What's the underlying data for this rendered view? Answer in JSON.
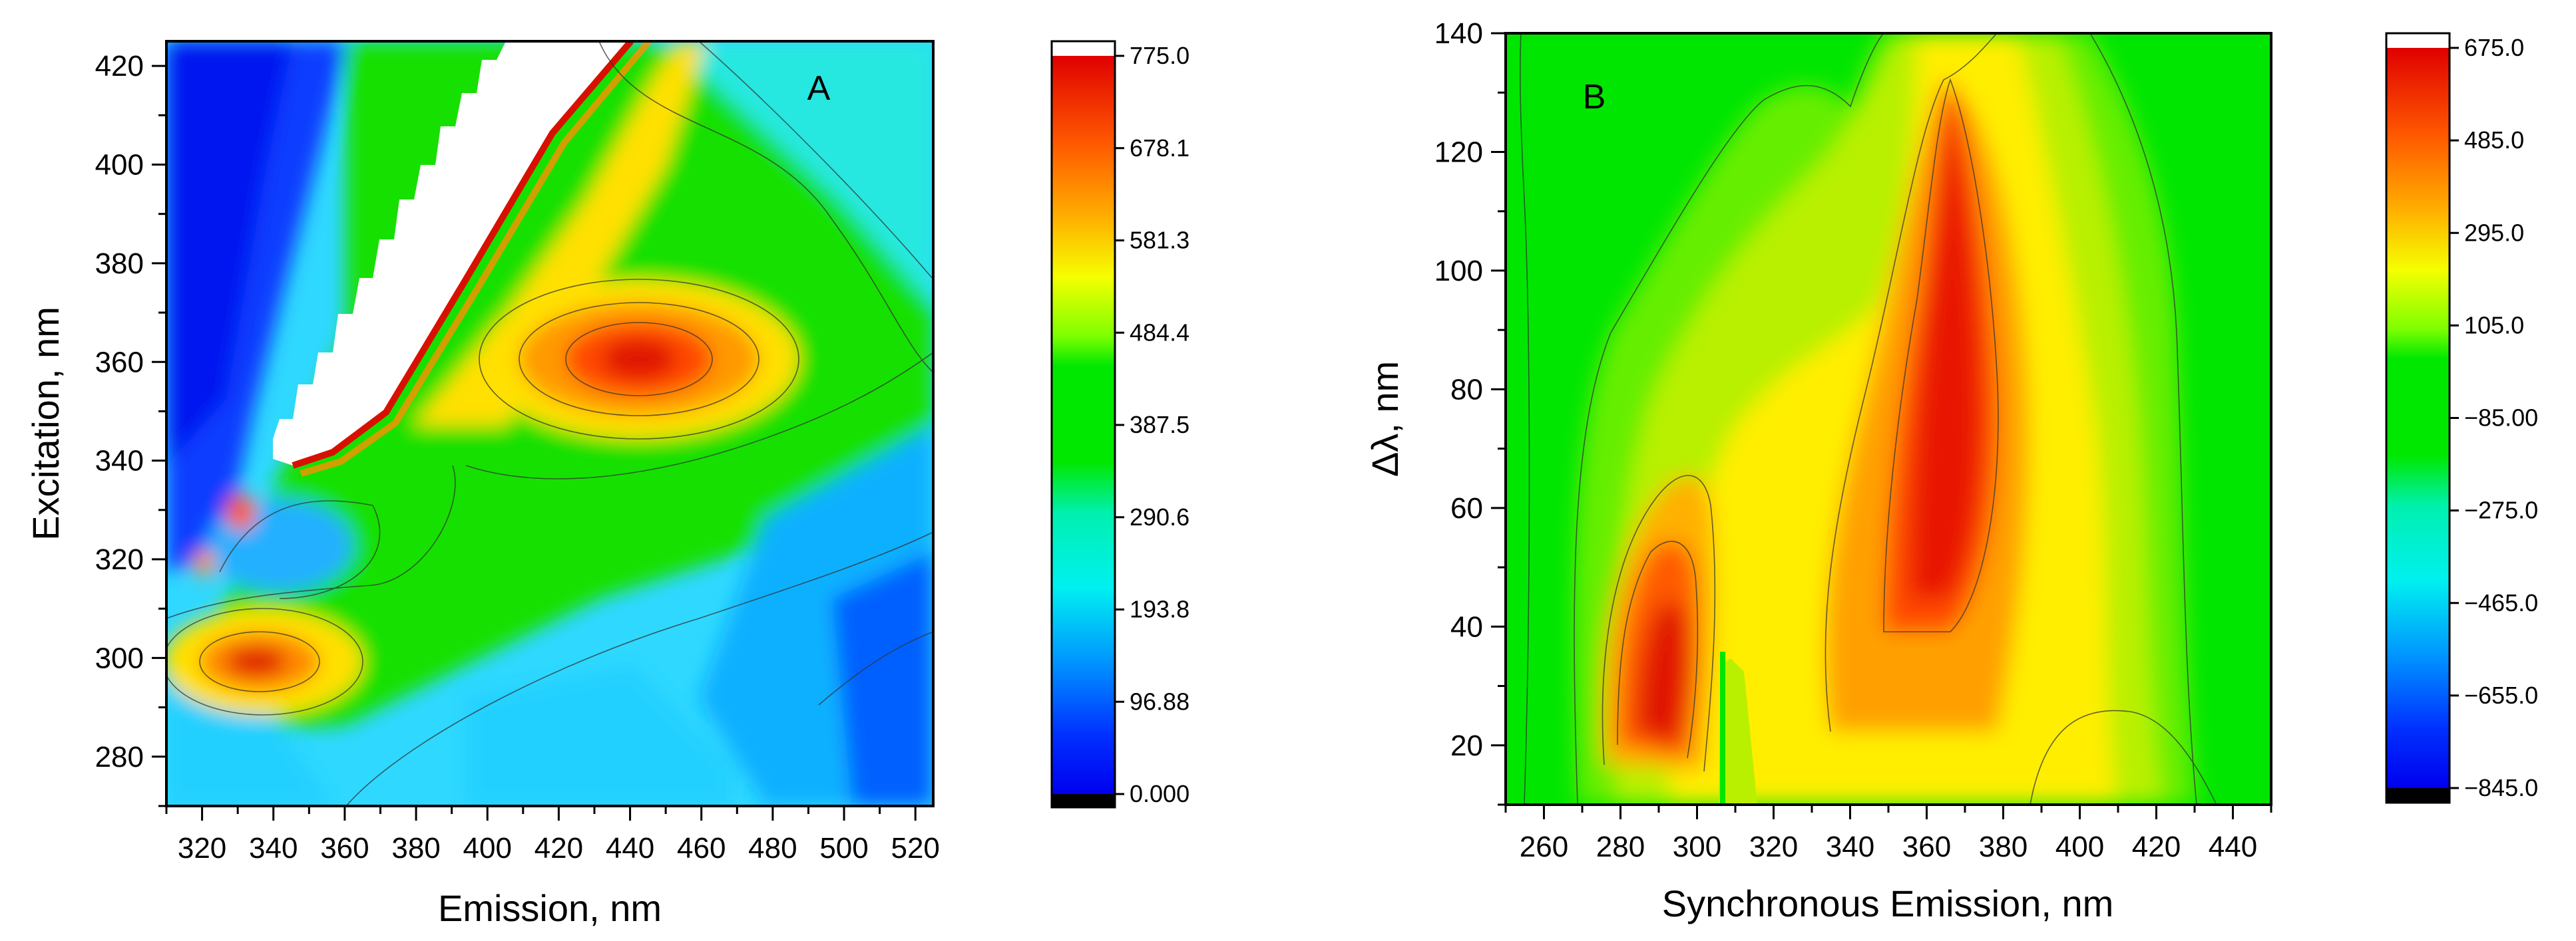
{
  "chart_data": [
    {
      "type": "heatmap",
      "panel_label": "A",
      "xlabel": "Emission, nm",
      "ylabel": "Excitation, nm",
      "xlim": [
        310,
        525
      ],
      "ylim": [
        270,
        425
      ],
      "xticks": [
        "320",
        "340",
        "360",
        "380",
        "400",
        "420",
        "440",
        "460",
        "480",
        "500",
        "520"
      ],
      "yticks": [
        "280",
        "300",
        "320",
        "340",
        "360",
        "380",
        "400",
        "420"
      ],
      "zlim": [
        0,
        775
      ],
      "colorbar_ticks": [
        "775.0",
        "678.1",
        "581.3",
        "484.4",
        "387.5",
        "290.6",
        "193.8",
        "96.88",
        "0.000"
      ],
      "peaks": [
        {
          "x": 440,
          "y": 360,
          "value": 690
        },
        {
          "x": 335,
          "y": 299,
          "value": 670
        },
        {
          "x": 330,
          "y": 328,
          "value": 640
        }
      ],
      "masked_region": "Rayleigh scatter band (blank, white) from about Ex 335 nm / Em 340 nm to Ex 425 nm / Em 410 nm"
    },
    {
      "type": "heatmap",
      "panel_label": "B",
      "xlabel": "Synchronous Emission, nm",
      "ylabel": "Δλ, nm",
      "xlim": [
        250,
        450
      ],
      "ylim": [
        10,
        140
      ],
      "xticks": [
        "260",
        "280",
        "300",
        "320",
        "340",
        "360",
        "380",
        "400",
        "420",
        "440"
      ],
      "yticks": [
        "20",
        "40",
        "60",
        "80",
        "100",
        "120",
        "140"
      ],
      "zlim": [
        -845,
        675
      ],
      "colorbar_ticks": [
        "675.0",
        "485.0",
        "295.0",
        "105.0",
        "−85.00",
        "−275.0",
        "−465.0",
        "−655.0",
        "−845.0"
      ],
      "peaks": [
        {
          "x": 362,
          "y": 85,
          "value": 600
        },
        {
          "x": 298,
          "y": 32,
          "value": 560
        }
      ]
    }
  ]
}
